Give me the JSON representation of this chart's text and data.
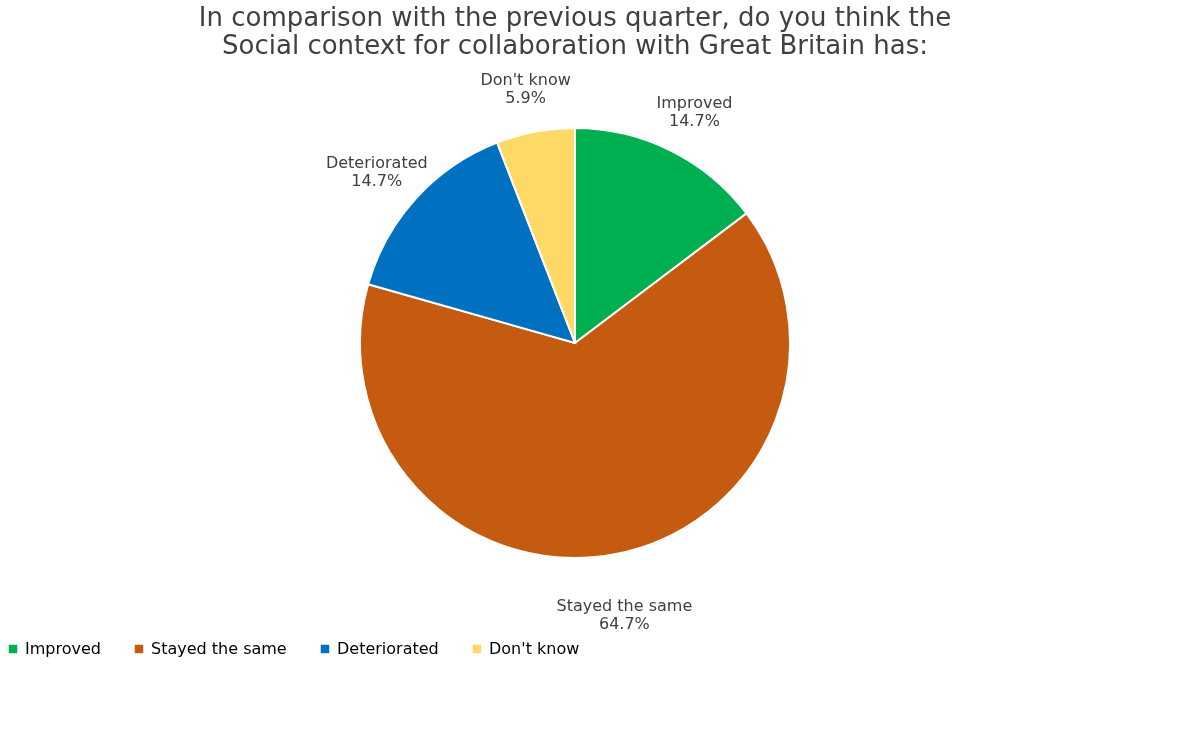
{
  "chart_data": {
    "type": "pie",
    "title": [
      "In comparison with the previous quarter, do you think the",
      "Social context for collaboration with Great Britain has:"
    ],
    "categories": [
      "Improved",
      "Stayed the same",
      "Deteriorated",
      "Don't know"
    ],
    "values": [
      14.7,
      64.7,
      14.7,
      5.9
    ],
    "colors": [
      "#00b050",
      "#c55a11",
      "#0070c0",
      "#ffd966"
    ],
    "value_labels": [
      "14.7%",
      "64.7%",
      "14.7%",
      "5.9%"
    ],
    "legend": "bottom"
  }
}
